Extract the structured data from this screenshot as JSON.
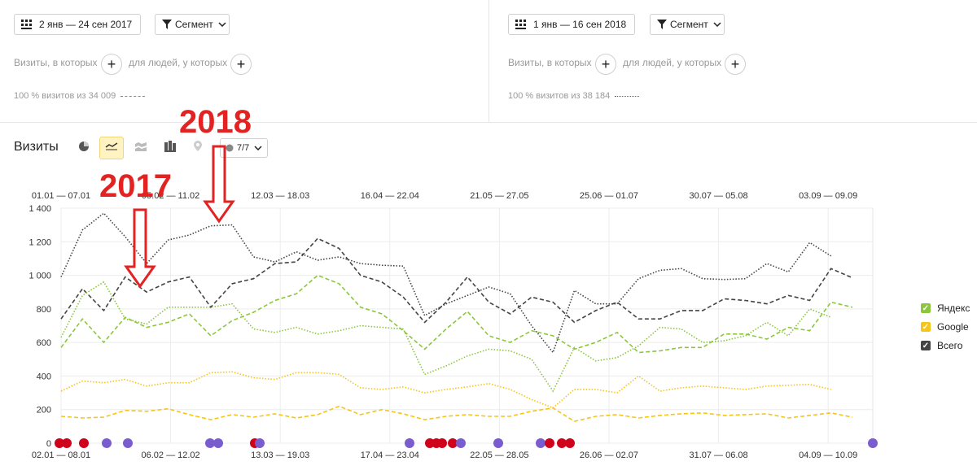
{
  "left_panel": {
    "date_range": "2 янв — 24 сен 2017",
    "segment_label": "Сегмент",
    "visits_filter": "Визиты, в которых",
    "people_filter": "для людей, у которых",
    "coverage": "100 % визитов из 34 009"
  },
  "right_panel": {
    "date_range": "1 янв — 16 сен 2018",
    "segment_label": "Сегмент",
    "visits_filter": "Визиты, в которых",
    "people_filter": "для людей, у которых",
    "coverage": "100 % визитов из 38 184"
  },
  "toolbar": {
    "title": "Визиты",
    "series_count": "7/7",
    "icons": [
      "pie-chart-icon",
      "line-chart-icon",
      "area-chart-icon",
      "bar-chart-icon",
      "map-icon",
      "series-toggle-icon"
    ]
  },
  "annotations": {
    "label_2017": "2017",
    "label_2018": "2018"
  },
  "legend": [
    {
      "name": "Яндекс",
      "color": "#8cc63f"
    },
    {
      "name": "Google",
      "color": "#f5c518"
    },
    {
      "name": "Всего",
      "color": "#444444"
    }
  ],
  "chart_data": {
    "type": "line",
    "ylabel": "",
    "ylim": [
      0,
      1400
    ],
    "yticks": [
      "0",
      "200",
      "400",
      "600",
      "800",
      "1 000",
      "1 200",
      "1 400"
    ],
    "ytick_values": [
      0,
      200,
      400,
      600,
      800,
      1000,
      1200,
      1400
    ],
    "top_axis_labels": [
      "01.01 — 07.01",
      "05.02 — 11.02",
      "12.03 — 18.03",
      "16.04 — 22.04",
      "21.05 — 27.05",
      "25.06 — 01.07",
      "30.07 — 05.08",
      "03.09 — 09.09"
    ],
    "bottom_axis_labels": [
      "02.01 — 08.01",
      "06.02 — 12.02",
      "13.03 — 19.03",
      "17.04 — 23.04",
      "22.05 — 28.05",
      "26.06 — 02.07",
      "31.07 — 06.08",
      "04.09 — 10.09"
    ],
    "series": [
      {
        "name": "Всего",
        "period": "2017",
        "style": "dashed",
        "color": "#444444",
        "values": [
          740,
          920,
          790,
          990,
          900,
          960,
          990,
          810,
          950,
          980,
          1070,
          1080,
          1220,
          1160,
          1000,
          960,
          870,
          720,
          840,
          990,
          840,
          770,
          870,
          840,
          720,
          790,
          840,
          740,
          740,
          790,
          790,
          860,
          850,
          830,
          880,
          850,
          1040,
          985
        ]
      },
      {
        "name": "Всего",
        "period": "2018",
        "style": "dotted",
        "color": "#444444",
        "values": [
          990,
          1270,
          1370,
          1230,
          1070,
          1210,
          1240,
          1295,
          1300,
          1110,
          1080,
          1140,
          1090,
          1110,
          1070,
          1060,
          1055,
          760,
          830,
          880,
          930,
          890,
          700,
          540,
          910,
          830,
          830,
          980,
          1030,
          1040,
          980,
          975,
          980,
          1070,
          1020,
          1195,
          1115
        ]
      },
      {
        "name": "Яндекс",
        "period": "2017",
        "style": "dashed",
        "color": "#8cc63f",
        "values": [
          570,
          740,
          600,
          750,
          690,
          720,
          770,
          640,
          730,
          780,
          850,
          890,
          1000,
          950,
          810,
          770,
          670,
          560,
          680,
          785,
          640,
          600,
          670,
          640,
          560,
          600,
          660,
          540,
          550,
          570,
          570,
          650,
          650,
          620,
          690,
          670,
          840,
          810
        ]
      },
      {
        "name": "Яндекс",
        "period": "2018",
        "style": "dotted",
        "color": "#8cc63f",
        "values": [
          630,
          880,
          960,
          740,
          710,
          810,
          810,
          810,
          830,
          680,
          660,
          690,
          650,
          670,
          700,
          690,
          680,
          410,
          460,
          520,
          560,
          550,
          500,
          310,
          570,
          490,
          510,
          580,
          690,
          680,
          600,
          610,
          640,
          720,
          640,
          800,
          750
        ]
      },
      {
        "name": "Google",
        "period": "2017",
        "style": "dashed",
        "color": "#f5c518",
        "values": [
          160,
          150,
          155,
          195,
          190,
          205,
          170,
          140,
          170,
          155,
          175,
          150,
          170,
          220,
          170,
          200,
          175,
          140,
          160,
          170,
          160,
          160,
          190,
          210,
          130,
          160,
          170,
          150,
          165,
          175,
          180,
          165,
          170,
          175,
          150,
          165,
          180,
          155
        ]
      },
      {
        "name": "Google",
        "period": "2018",
        "style": "dotted",
        "color": "#f5c518",
        "values": [
          310,
          370,
          360,
          380,
          340,
          360,
          360,
          420,
          425,
          390,
          380,
          420,
          420,
          410,
          330,
          320,
          335,
          300,
          320,
          335,
          355,
          320,
          260,
          210,
          320,
          320,
          300,
          400,
          310,
          330,
          340,
          330,
          320,
          340,
          345,
          350,
          320
        ]
      }
    ]
  }
}
